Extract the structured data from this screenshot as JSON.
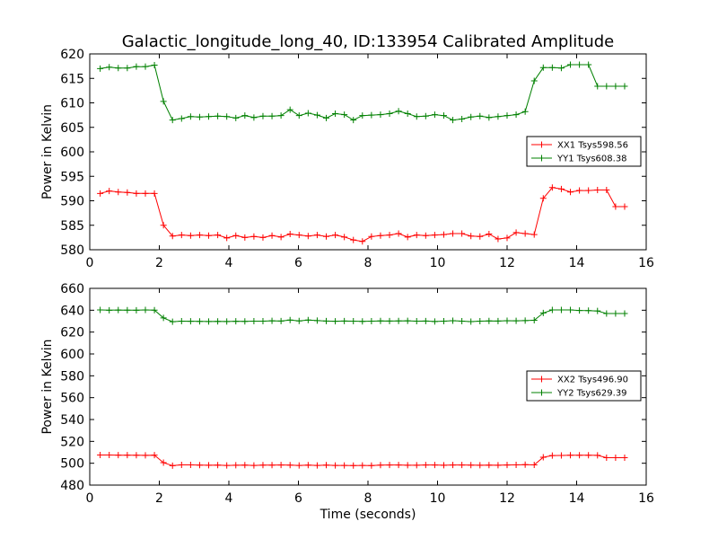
{
  "figure": {
    "title": "Galactic_longitude_long_40, ID:133954 Calibrated Amplitude",
    "xlabel": "Time (seconds)"
  },
  "chart_data": [
    {
      "type": "line",
      "title": "Galactic_longitude_long_40, ID:133954 Calibrated Amplitude",
      "xlabel": "",
      "ylabel": "Power in Kelvin",
      "xlim": [
        0,
        16
      ],
      "ylim": [
        580,
        620
      ],
      "xticks": [
        0,
        2,
        4,
        6,
        8,
        10,
        12,
        14,
        16
      ],
      "yticks": [
        580,
        585,
        590,
        595,
        600,
        605,
        610,
        615,
        620
      ],
      "grid": false,
      "legend_position": "center-right",
      "x": [
        0.3,
        0.56,
        0.82,
        1.08,
        1.34,
        1.6,
        1.86,
        2.12,
        2.38,
        2.64,
        2.9,
        3.16,
        3.42,
        3.68,
        3.94,
        4.2,
        4.46,
        4.72,
        4.98,
        5.24,
        5.5,
        5.76,
        6.02,
        6.28,
        6.54,
        6.8,
        7.06,
        7.32,
        7.58,
        7.84,
        8.1,
        8.36,
        8.62,
        8.88,
        9.14,
        9.4,
        9.66,
        9.92,
        10.18,
        10.44,
        10.7,
        10.96,
        11.22,
        11.48,
        11.74,
        12.0,
        12.26,
        12.52,
        12.78,
        13.04,
        13.3,
        13.56,
        13.82,
        14.08,
        14.34,
        14.6,
        14.86,
        15.12,
        15.38
      ],
      "series": [
        {
          "name": "XX1 Tsys598.56",
          "color": "#ff0000",
          "values": [
            591.5,
            592.0,
            591.8,
            591.7,
            591.5,
            591.5,
            591.5,
            585.0,
            582.8,
            583.0,
            582.9,
            583.0,
            582.9,
            583.0,
            582.4,
            582.9,
            582.5,
            582.7,
            582.5,
            582.9,
            582.6,
            583.2,
            583.0,
            582.8,
            583.0,
            582.7,
            583.0,
            582.6,
            582.0,
            581.7,
            582.7,
            582.9,
            583.0,
            583.3,
            582.6,
            583.0,
            582.9,
            583.0,
            583.1,
            583.3,
            583.3,
            582.8,
            582.7,
            583.2,
            582.2,
            582.4,
            583.5,
            583.3,
            583.1,
            590.5,
            592.7,
            592.4,
            591.8,
            592.1,
            592.1,
            592.2,
            592.2,
            588.8,
            588.8
          ]
        },
        {
          "name": "YY1 Tsys608.38",
          "color": "#008000",
          "values": [
            617.0,
            617.3,
            617.1,
            617.1,
            617.4,
            617.4,
            617.7,
            610.3,
            606.5,
            606.8,
            607.2,
            607.1,
            607.2,
            607.3,
            607.2,
            606.9,
            607.4,
            607.0,
            607.3,
            607.3,
            607.4,
            608.6,
            607.4,
            607.9,
            607.5,
            606.9,
            607.8,
            607.6,
            606.5,
            607.4,
            607.5,
            607.6,
            607.8,
            608.3,
            607.8,
            607.2,
            607.3,
            607.6,
            607.4,
            606.5,
            606.7,
            607.1,
            607.3,
            607.0,
            607.2,
            607.4,
            607.6,
            608.2,
            614.5,
            617.2,
            617.2,
            617.1,
            617.8,
            617.8,
            617.8,
            613.4,
            613.4,
            613.4,
            613.4
          ]
        }
      ]
    },
    {
      "type": "line",
      "title": "",
      "xlabel": "Time (seconds)",
      "ylabel": "Power in Kelvin",
      "xlim": [
        0,
        16
      ],
      "ylim": [
        480,
        660
      ],
      "xticks": [
        0,
        2,
        4,
        6,
        8,
        10,
        12,
        14,
        16
      ],
      "yticks": [
        480,
        500,
        520,
        540,
        560,
        580,
        600,
        620,
        640,
        660
      ],
      "grid": false,
      "legend_position": "center-right",
      "x": [
        0.3,
        0.56,
        0.82,
        1.08,
        1.34,
        1.6,
        1.86,
        2.12,
        2.38,
        2.64,
        2.9,
        3.16,
        3.42,
        3.68,
        3.94,
        4.2,
        4.46,
        4.72,
        4.98,
        5.24,
        5.5,
        5.76,
        6.02,
        6.28,
        6.54,
        6.8,
        7.06,
        7.32,
        7.58,
        7.84,
        8.1,
        8.36,
        8.62,
        8.88,
        9.14,
        9.4,
        9.66,
        9.92,
        10.18,
        10.44,
        10.7,
        10.96,
        11.22,
        11.48,
        11.74,
        12.0,
        12.26,
        12.52,
        12.78,
        13.04,
        13.3,
        13.56,
        13.82,
        14.08,
        14.34,
        14.6,
        14.86,
        15.12,
        15.38
      ],
      "series": [
        {
          "name": "XX2 Tsys496.90",
          "color": "#ff0000",
          "values": [
            507.5,
            507.5,
            507.4,
            507.4,
            507.3,
            507.2,
            507.4,
            500.5,
            497.8,
            498.5,
            498.5,
            498.3,
            498.2,
            498.3,
            498.0,
            498.2,
            498.3,
            498.0,
            498.3,
            498.3,
            498.4,
            498.3,
            498.0,
            498.3,
            498.0,
            498.3,
            498.0,
            498.0,
            497.9,
            498.0,
            497.9,
            498.3,
            498.4,
            498.4,
            498.2,
            498.2,
            498.4,
            498.4,
            498.2,
            498.4,
            498.4,
            498.3,
            498.2,
            498.3,
            498.2,
            498.4,
            498.5,
            498.7,
            498.5,
            505.5,
            507.0,
            507.1,
            507.3,
            507.3,
            507.3,
            507.2,
            505.1,
            505.1,
            505.1
          ]
        },
        {
          "name": "YY2 Tsys629.39",
          "color": "#008000",
          "values": [
            640.3,
            640.0,
            640.2,
            640.1,
            640.0,
            640.3,
            640.1,
            633.0,
            629.5,
            630.0,
            629.9,
            629.8,
            629.7,
            629.8,
            629.7,
            629.9,
            629.8,
            630.0,
            630.0,
            630.3,
            630.1,
            631.0,
            630.2,
            631.0,
            630.5,
            630.1,
            629.9,
            630.1,
            630.0,
            629.8,
            630.0,
            630.2,
            630.1,
            630.2,
            630.3,
            630.0,
            630.1,
            629.7,
            630.0,
            630.4,
            630.0,
            629.6,
            630.0,
            630.2,
            630.1,
            630.4,
            630.3,
            630.5,
            630.8,
            637.5,
            640.3,
            640.3,
            640.3,
            639.8,
            639.7,
            639.3,
            637.0,
            637.0,
            637.0
          ]
        }
      ]
    }
  ]
}
